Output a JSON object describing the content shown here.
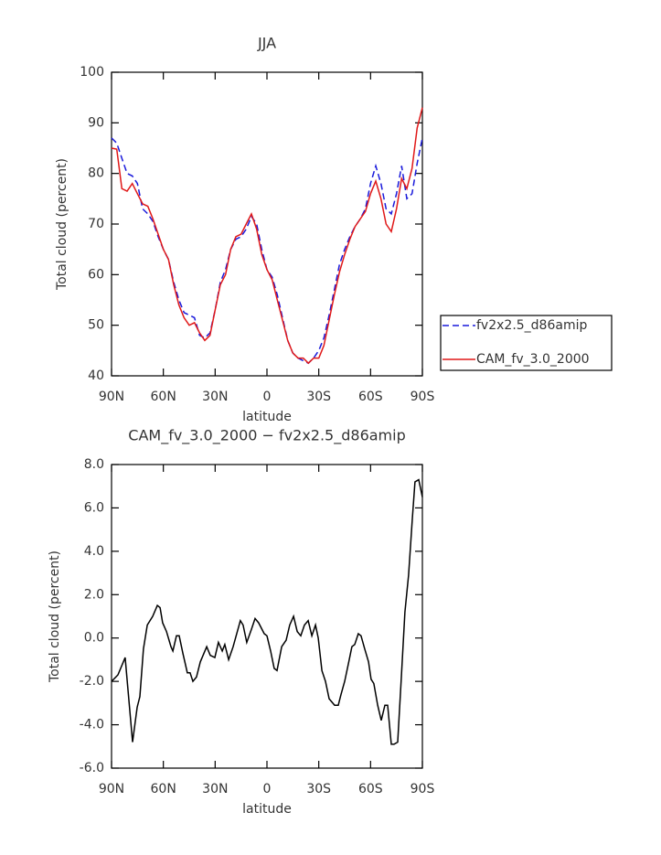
{
  "chart_data": [
    {
      "type": "line",
      "title": "JJA",
      "xlabel": "latitude",
      "ylabel": "Total cloud (percent)",
      "x": [
        90,
        87,
        84,
        81,
        78,
        75,
        72,
        69,
        66,
        63,
        60,
        57,
        54,
        51,
        48,
        45,
        42,
        39,
        36,
        33,
        30,
        27,
        24,
        21,
        18,
        15,
        12,
        9,
        6,
        3,
        0,
        -3,
        -6,
        -9,
        -12,
        -15,
        -18,
        -21,
        -24,
        -27,
        -30,
        -33,
        -36,
        -39,
        -42,
        -45,
        -48,
        -51,
        -54,
        -57,
        -60,
        -63,
        -66,
        -69,
        -72,
        -75,
        -78,
        -81,
        -84,
        -87,
        -90
      ],
      "series": [
        {
          "name": "fv2x2.5_d86amip",
          "color": "#1a1adb",
          "style": "dashed",
          "values": [
            87,
            86,
            83,
            80,
            79.5,
            78,
            73,
            72,
            70.5,
            67.5,
            65,
            63,
            58.5,
            55,
            52.5,
            52,
            51.5,
            48,
            47.5,
            48.5,
            53,
            58.5,
            61,
            65,
            67,
            67.5,
            69,
            71.5,
            70,
            65,
            61,
            59.5,
            56,
            51.5,
            47,
            44.5,
            43.5,
            43,
            42.5,
            43.5,
            45,
            47.5,
            52,
            57,
            62,
            65,
            67.5,
            69.5,
            71,
            73,
            78,
            81.5,
            78,
            73,
            72,
            76,
            81.5,
            75,
            76,
            82,
            87
          ]
        },
        {
          "name": "CAM_fv_3.0_2000",
          "color": "#e01818",
          "style": "solid",
          "values": [
            85,
            84.8,
            77,
            76.5,
            78,
            76,
            74,
            73.5,
            71,
            68,
            65,
            63,
            58,
            54,
            51.5,
            50,
            50.5,
            48.5,
            47,
            48,
            53,
            58,
            60,
            65,
            67.5,
            68,
            70,
            72,
            69,
            64,
            61,
            59,
            55,
            51,
            47,
            44.5,
            43.5,
            43.5,
            42.5,
            43.5,
            43.5,
            46,
            51,
            56,
            60.5,
            64,
            67,
            69.5,
            71,
            72.5,
            76,
            78.5,
            75,
            70,
            68.5,
            73,
            79,
            77,
            81,
            89,
            93
          ]
        }
      ],
      "xlim": [
        90,
        -90
      ],
      "xticks": [
        {
          "value": 90,
          "label": "90N"
        },
        {
          "value": 60,
          "label": "60N"
        },
        {
          "value": 30,
          "label": "30N"
        },
        0,
        {
          "value": -30,
          "label": "30S"
        },
        {
          "value": -60,
          "label": "60S"
        },
        {
          "value": -90,
          "label": "90S"
        }
      ],
      "ylim": [
        40,
        100
      ],
      "yticks": [
        40,
        50,
        60,
        70,
        80,
        90,
        100
      ],
      "legend": "right"
    },
    {
      "type": "line",
      "title": "CAM_fv_3.0_2000 − fv2x2.5_d86amip",
      "xlabel": "latitude",
      "ylabel": "Total cloud (percent)",
      "x": [
        90,
        86.3,
        82.1,
        77.8,
        75.2,
        73.6,
        71.5,
        69.3,
        66.2,
        63.5,
        61.9,
        60.4,
        58.2,
        55.6,
        54.5,
        52.4,
        50.8,
        48.7,
        46.1,
        44.5,
        42.9,
        40.8,
        38.6,
        36.5,
        34.9,
        32.8,
        30.2,
        28.1,
        25.9,
        24.4,
        22.2,
        19.6,
        15.4,
        13.8,
        11.7,
        9.0,
        6.9,
        4.8,
        1.6,
        0,
        -2.1,
        -4.2,
        -5.8,
        -8.5,
        -11.1,
        -13.2,
        -15.4,
        -17.5,
        -19.6,
        -21.7,
        -23.9,
        -26.0,
        -28.1,
        -29.7,
        -31.8,
        -33.9,
        -36.0,
        -39.2,
        -41.3,
        -42.9,
        -45.0,
        -47.1,
        -49.2,
        -50.8,
        -52.9,
        -54.5,
        -56.6,
        -58.8,
        -60.3,
        -61.9,
        -64.1,
        -66.2,
        -68.3,
        -69.9,
        -72.0,
        -73.6,
        -75.7,
        -77.8,
        -79.9,
        -82.0,
        -84.2,
        -85.7,
        -87.9,
        -90
      ],
      "values": [
        -2.0,
        -1.7,
        -0.9,
        -4.8,
        -3.2,
        -2.7,
        -0.5,
        0.6,
        1.0,
        1.5,
        1.4,
        0.7,
        0.3,
        -0.4,
        -0.6,
        0.1,
        0.1,
        -0.7,
        -1.6,
        -1.6,
        -2.0,
        -1.8,
        -1.1,
        -0.7,
        -0.4,
        -0.8,
        -0.9,
        -0.2,
        -0.6,
        -0.3,
        -1.0,
        -0.4,
        0.8,
        0.6,
        -0.2,
        0.4,
        0.9,
        0.7,
        0.2,
        0.1,
        -0.6,
        -1.4,
        -1.5,
        -0.4,
        -0.1,
        0.6,
        1.0,
        0.3,
        0.1,
        0.6,
        0.8,
        0.1,
        0.6,
        0.0,
        -1.5,
        -2.0,
        -2.8,
        -3.1,
        -3.1,
        -2.6,
        -2.0,
        -1.2,
        -0.4,
        -0.3,
        0.2,
        0.1,
        -0.5,
        -1.1,
        -1.9,
        -2.1,
        -3.1,
        -3.8,
        -3.1,
        -3.1,
        -4.9,
        -4.9,
        -4.8,
        -1.8,
        1.2,
        2.9,
        5.5,
        7.2,
        7.3,
        6.5
      ],
      "color": "#000000",
      "xlim": [
        90,
        -90
      ],
      "xticks": [
        {
          "value": 90,
          "label": "90N"
        },
        {
          "value": 60,
          "label": "60N"
        },
        {
          "value": 30,
          "label": "30N"
        },
        0,
        {
          "value": -30,
          "label": "30S"
        },
        {
          "value": -60,
          "label": "60S"
        },
        {
          "value": -90,
          "label": "90S"
        }
      ],
      "ylim": [
        -6,
        8
      ],
      "yticks": [
        {
          "value": -6,
          "label": "-6.0"
        },
        {
          "value": -4,
          "label": "-4.0"
        },
        {
          "value": -2,
          "label": "-2.0"
        },
        {
          "value": 0,
          "label": "0.0"
        },
        {
          "value": 2,
          "label": "2.0"
        },
        {
          "value": 4,
          "label": "4.0"
        },
        {
          "value": 6,
          "label": "6.0"
        },
        {
          "value": 8,
          "label": "8.0"
        }
      ]
    }
  ]
}
